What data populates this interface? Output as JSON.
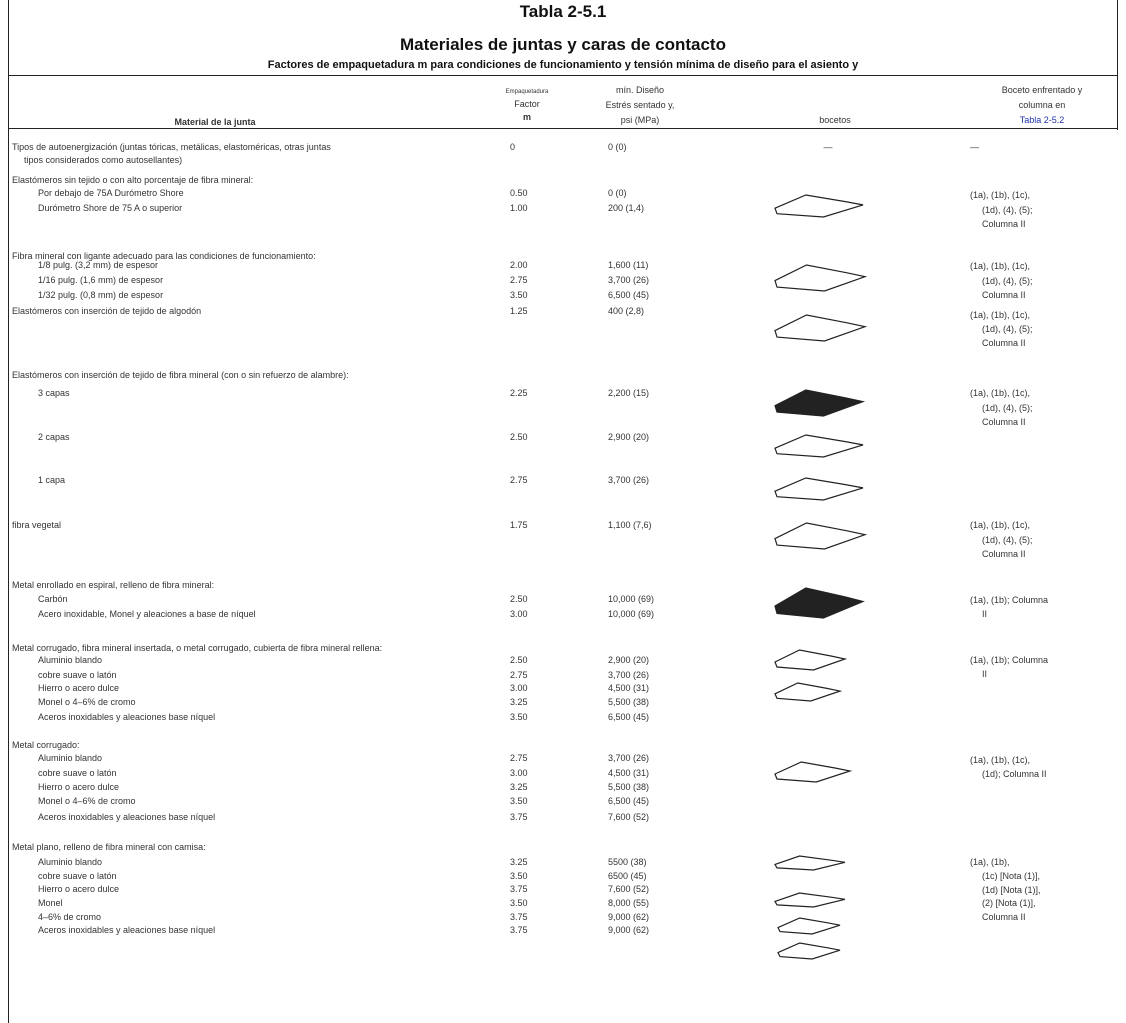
{
  "header": {
    "title": "Tabla 2-5.1",
    "subtitle": "Materiales de juntas y caras de contacto",
    "caption": "Factores de empaquetadura m para condiciones de funcionamiento y tensión mínima de diseño para el asiento y"
  },
  "columns": {
    "material": "Material de la junta",
    "factor_small": "Empaquetadura",
    "factor": "Factor",
    "factor_symbol": "m",
    "stress": [
      "mín. Diseño",
      "Estrés sentado y,",
      "psi (MPa)"
    ],
    "sketches": "bocetos",
    "reference": [
      "Boceto enfrentado y",
      "columna en",
      "Tabla 2-5.2"
    ]
  },
  "groups": [
    {
      "heading": [
        "Tipos de autoenergización (juntas tóricas, metálicas, elastoméricas, otras juntas",
        "tipos considerados como autosellantes)"
      ],
      "rows": [
        {
          "factor": "0",
          "stress": "0 (0)"
        }
      ],
      "sketch": "—",
      "reference": [
        "—"
      ]
    },
    {
      "heading": [
        "Elastómeros sin tejido o con alto porcentaje de fibra mineral:"
      ],
      "rows": [
        {
          "material": "Por debajo de 75A Durómetro Shore",
          "factor": "0.50",
          "stress": "0 (0)"
        },
        {
          "material": "Durómetro Shore de 75 A o superior",
          "factor": "1.00",
          "stress": "200 (1,4)"
        }
      ],
      "reference": [
        "(1a), (1b), (1c),",
        "(1d), (4), (5);",
        "Columna II"
      ]
    },
    {
      "heading": [
        "Fibra mineral con ligante adecuado para las condiciones de funcionamiento:"
      ],
      "rows": [
        {
          "material": "1/8 pulg. (3,2 mm) de espesor",
          "factor": "2.00",
          "stress": "1,600 (11)"
        },
        {
          "material": "1/16 pulg. (1,6 mm) de espesor",
          "factor": "2.75",
          "stress": "3,700 (26)"
        },
        {
          "material": "1/32 pulg. (0,8 mm) de espesor",
          "factor": "3.50",
          "stress": "6,500 (45)"
        }
      ],
      "reference": [
        "(1a), (1b), (1c),",
        "(1d), (4), (5);",
        "Columna II"
      ]
    },
    {
      "heading": [
        "Elastómeros con inserción de tejido de algodón"
      ],
      "rows": [
        {
          "factor": "1.25",
          "stress": "400 (2,8)"
        }
      ],
      "reference": [
        "(1a), (1b), (1c),",
        "(1d), (4), (5);",
        "Columna II"
      ]
    },
    {
      "heading": [
        "Elastómeros con inserción de tejido de fibra mineral (con o sin refuerzo de alambre):"
      ],
      "rows": [
        {
          "material": "3 capas",
          "factor": "2.25",
          "stress": "2,200 (15)"
        },
        {
          "material": "2 capas",
          "factor": "2.50",
          "stress": "2,900 (20)"
        },
        {
          "material": "1 capa",
          "factor": "2.75",
          "stress": "3,700 (26)"
        }
      ],
      "reference": [
        "(1a), (1b), (1c),",
        "(1d), (4), (5);",
        "Columna II"
      ]
    },
    {
      "heading": [
        "fibra vegetal"
      ],
      "rows": [
        {
          "factor": "1.75",
          "stress": "1,100 (7,6)"
        }
      ],
      "reference": [
        "(1a), (1b), (1c),",
        "(1d), (4), (5);",
        "Columna II"
      ]
    },
    {
      "heading": [
        "Metal enrollado en espiral, relleno de fibra mineral:"
      ],
      "rows": [
        {
          "material": "Carbón",
          "factor": "2.50",
          "stress": "10,000 (69)"
        },
        {
          "material": "Acero inoxidable, Monel y aleaciones a base de níquel",
          "factor": "3.00",
          "stress": "10,000 (69)"
        }
      ],
      "reference": [
        "(1a), (1b); Columna",
        "II"
      ]
    },
    {
      "heading": [
        "Metal corrugado, fibra mineral insertada, o metal corrugado, cubierta de fibra mineral rellena:"
      ],
      "rows": [
        {
          "material": "Aluminio blando",
          "factor": "2.50",
          "stress": "2,900 (20)"
        },
        {
          "material": "cobre suave o latón",
          "factor": "2.75",
          "stress": "3,700 (26)"
        },
        {
          "material": "Hierro o acero dulce",
          "factor": "3.00",
          "stress": "4,500 (31)"
        },
        {
          "material": "Monel o 4–6% de cromo",
          "factor": "3.25",
          "stress": "5,500 (38)"
        },
        {
          "material": "Aceros inoxidables y aleaciones base níquel",
          "factor": "3.50",
          "stress": "6,500 (45)"
        }
      ],
      "reference": [
        "(1a), (1b); Columna",
        "II"
      ]
    },
    {
      "heading": [
        "Metal corrugado:"
      ],
      "rows": [
        {
          "material": "Aluminio blando",
          "factor": "2.75",
          "stress": "3,700 (26)"
        },
        {
          "material": "cobre suave o latón",
          "factor": "3.00",
          "stress": "4,500 (31)"
        },
        {
          "material": "Hierro o acero dulce",
          "factor": "3.25",
          "stress": "5,500 (38)"
        },
        {
          "material": "Monel o 4–6% de cromo",
          "factor": "3.50",
          "stress": "6,500 (45)"
        },
        {
          "material": "Aceros inoxidables y aleaciones base níquel",
          "factor": "3.75",
          "stress": "7,600 (52)"
        }
      ],
      "reference": [
        "(1a), (1b), (1c),",
        "(1d); Columna II"
      ]
    },
    {
      "heading": [
        "Metal plano, relleno de fibra mineral con camisa:"
      ],
      "rows": [
        {
          "material": "Aluminio blando",
          "factor": "3.25",
          "stress": "5500 (38)"
        },
        {
          "material": "cobre suave o latón",
          "factor": "3.50",
          "stress": "6500 (45)"
        },
        {
          "material": "Hierro o acero dulce",
          "factor": "3.75",
          "stress": "7,600 (52)"
        },
        {
          "material": "Monel",
          "factor": "3.50",
          "stress": "8,000 (55)"
        },
        {
          "material": "4–6% de cromo",
          "factor": "3.75",
          "stress": "9,000 (62)"
        },
        {
          "material": "Aceros inoxidables y aleaciones base níquel",
          "factor": "3.75",
          "stress": "9,000 (62)"
        }
      ],
      "reference": [
        "(1a), (1b),",
        "(1c) [Nota (1)],",
        "(1d) [Nota (1)],",
        "(2) [Nota (1)],",
        "Columna II"
      ]
    }
  ]
}
